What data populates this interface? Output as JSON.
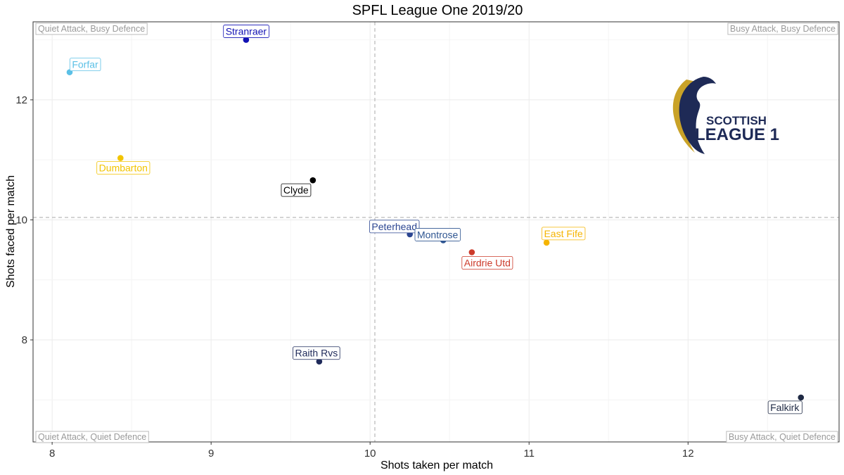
{
  "chart_data": {
    "type": "scatter",
    "title": "SPFL League One 2019/20",
    "xlabel": "Shots taken per match",
    "ylabel": "Shots faced per match",
    "xlim": [
      7.88,
      12.95
    ],
    "ylim": [
      6.3,
      13.3
    ],
    "x_ticks": [
      8,
      9,
      10,
      11,
      12
    ],
    "y_ticks": [
      8,
      10,
      12
    ],
    "grid": true,
    "reference_lines": {
      "x": 10.03,
      "y": 10.04
    },
    "quadrant_labels": {
      "top_left": "Quiet Attack, Busy Defence",
      "top_right": "Busy Attack, Busy Defence",
      "bottom_left": "Quiet Attack, Quiet Defence",
      "bottom_right": "Busy Attack, Quiet Defence"
    },
    "points": [
      {
        "label": "Stranraer",
        "x": 9.22,
        "y": 13.0,
        "color": "#1212b4"
      },
      {
        "label": "Forfar",
        "x": 8.11,
        "y": 12.46,
        "color": "#5bc0e6"
      },
      {
        "label": "Dumbarton",
        "x": 8.43,
        "y": 11.03,
        "color": "#f2c400"
      },
      {
        "label": "Clyde",
        "x": 9.64,
        "y": 10.66,
        "color": "#000000"
      },
      {
        "label": "Peterhead",
        "x": 10.25,
        "y": 9.76,
        "color": "#2b4591"
      },
      {
        "label": "Montrose",
        "x": 10.46,
        "y": 9.66,
        "color": "#2e5591"
      },
      {
        "label": "Airdrie Utd",
        "x": 10.64,
        "y": 9.46,
        "color": "#cc3a2a"
      },
      {
        "label": "East Fife",
        "x": 11.11,
        "y": 9.62,
        "color": "#f5b400"
      },
      {
        "label": "Raith Rvs",
        "x": 9.68,
        "y": 7.64,
        "color": "#1f2a5a"
      },
      {
        "label": "Falkirk",
        "x": 12.71,
        "y": 7.04,
        "color": "#1f2a44"
      }
    ]
  },
  "logo": {
    "line1": "SCOTTISH",
    "line2": "LEAGUE 1",
    "primary_color": "#1e2a56",
    "accent_color": "#c9a227"
  }
}
